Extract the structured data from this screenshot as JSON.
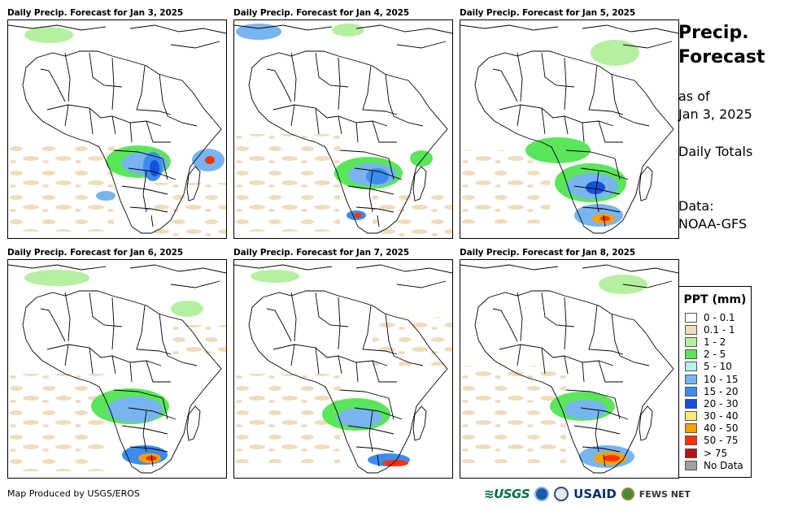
{
  "panels": [
    {
      "title": "Daily Precip. Forecast for Jan 3, 2025"
    },
    {
      "title": "Daily Precip. Forecast for Jan 4, 2025"
    },
    {
      "title": "Daily Precip. Forecast for Jan 5, 2025"
    },
    {
      "title": "Daily Precip. Forecast for Jan 6, 2025"
    },
    {
      "title": "Daily Precip. Forecast for Jan 7, 2025"
    },
    {
      "title": "Daily Precip. Forecast for Jan 8, 2025"
    }
  ],
  "side": {
    "title_line1": "Precip.",
    "title_line2": "Forecast",
    "asof_line1": "as of",
    "asof_line2": "Jan 3, 2025",
    "totals": "Daily Totals",
    "data_line1": "Data:",
    "data_line2": "NOAA-GFS"
  },
  "legend": {
    "title": "PPT (mm)",
    "items": [
      {
        "label": "0 - 0.1",
        "color": "#ffffff"
      },
      {
        "label": "0.1 - 1",
        "color": "#f0dcbc"
      },
      {
        "label": "1 - 2",
        "color": "#b4f0a0"
      },
      {
        "label": "2 - 5",
        "color": "#5ae65a"
      },
      {
        "label": "5 - 10",
        "color": "#b4f0f0"
      },
      {
        "label": "10 - 15",
        "color": "#78b4f0"
      },
      {
        "label": "15 - 20",
        "color": "#3c8cf0"
      },
      {
        "label": "20 - 30",
        "color": "#1450dc"
      },
      {
        "label": "30 - 40",
        "color": "#ffe678"
      },
      {
        "label": "40 - 50",
        "color": "#ffa000"
      },
      {
        "label": "50 - 75",
        "color": "#ff3200"
      },
      {
        "label": "> 75",
        "color": "#b41414"
      },
      {
        "label": "No Data",
        "color": "#a0a0a0"
      }
    ]
  },
  "footer": {
    "credit": "Map Produced by USGS/EROS",
    "logo_usgs": "≋USGS",
    "logo_usaid": "USAID",
    "logo_fews": "FEWS NET"
  }
}
